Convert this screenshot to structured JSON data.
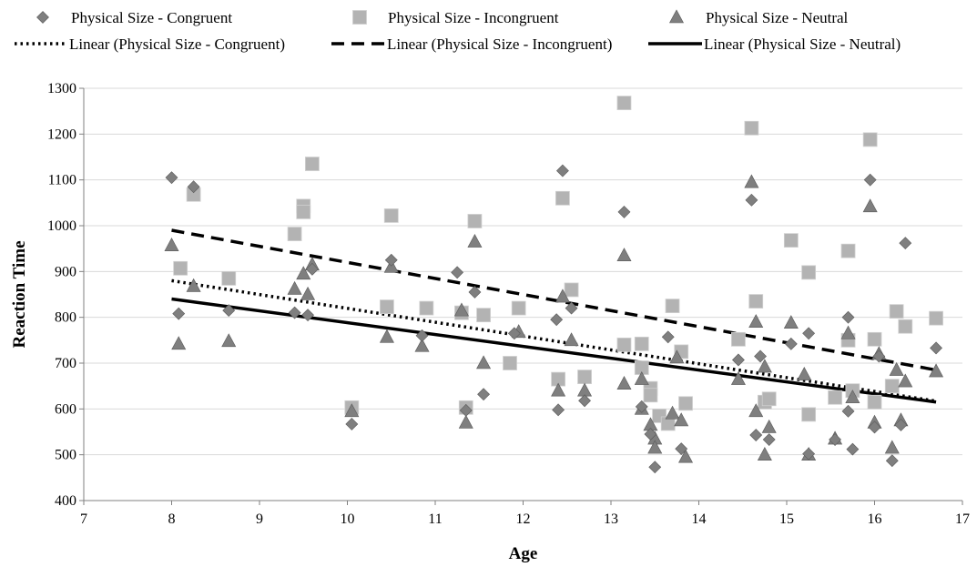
{
  "chart_data": {
    "type": "scatter",
    "title": "",
    "xlabel": "Age",
    "ylabel": "Reaction Time",
    "xlim": [
      7,
      17
    ],
    "ylim": [
      400,
      1300
    ],
    "xticks": [
      "7",
      "8",
      "9",
      "10",
      "11",
      "12",
      "13",
      "14",
      "15",
      "16",
      "17"
    ],
    "yticks": [
      "400",
      "500",
      "600",
      "700",
      "800",
      "900",
      "1000",
      "1100",
      "1200",
      "1300"
    ],
    "grid": "horizontal",
    "legend_position": "top",
    "series": [
      {
        "name": "Physical Size - Congruent",
        "marker": "diamond",
        "color": "#7f7f7f",
        "points": [
          [
            8.0,
            1105
          ],
          [
            8.08,
            808
          ],
          [
            8.25,
            1085
          ],
          [
            8.65,
            815
          ],
          [
            9.4,
            810
          ],
          [
            9.55,
            805
          ],
          [
            9.6,
            905
          ],
          [
            10.05,
            567
          ],
          [
            10.5,
            925
          ],
          [
            10.85,
            760
          ],
          [
            11.25,
            898
          ],
          [
            11.35,
            597
          ],
          [
            11.45,
            855
          ],
          [
            11.55,
            632
          ],
          [
            11.9,
            765
          ],
          [
            12.38,
            795
          ],
          [
            12.4,
            598
          ],
          [
            12.45,
            1120
          ],
          [
            12.55,
            820
          ],
          [
            12.7,
            618
          ],
          [
            13.15,
            1030
          ],
          [
            13.35,
            605
          ],
          [
            13.45,
            545
          ],
          [
            13.5,
            473
          ],
          [
            13.65,
            757
          ],
          [
            13.8,
            513
          ],
          [
            14.45,
            707
          ],
          [
            14.6,
            1056
          ],
          [
            14.65,
            543
          ],
          [
            14.7,
            715
          ],
          [
            14.8,
            533
          ],
          [
            15.05,
            742
          ],
          [
            15.25,
            765
          ],
          [
            15.25,
            502
          ],
          [
            15.55,
            533
          ],
          [
            15.7,
            800
          ],
          [
            15.7,
            595
          ],
          [
            15.75,
            512
          ],
          [
            15.95,
            1100
          ],
          [
            16.0,
            560
          ],
          [
            16.05,
            715
          ],
          [
            16.2,
            487
          ],
          [
            16.3,
            565
          ],
          [
            16.35,
            962
          ],
          [
            16.7,
            733
          ]
        ]
      },
      {
        "name": "Physical Size - Incongruent",
        "marker": "square",
        "color": "#b3b3b3",
        "points": [
          [
            8.1,
            907
          ],
          [
            8.25,
            1068
          ],
          [
            8.65,
            885
          ],
          [
            9.4,
            982
          ],
          [
            9.5,
            1043
          ],
          [
            9.5,
            1030
          ],
          [
            9.6,
            1135
          ],
          [
            10.05,
            603
          ],
          [
            10.45,
            823
          ],
          [
            10.5,
            1022
          ],
          [
            10.9,
            820
          ],
          [
            11.3,
            810
          ],
          [
            11.35,
            603
          ],
          [
            11.45,
            1010
          ],
          [
            11.55,
            805
          ],
          [
            11.85,
            700
          ],
          [
            11.95,
            820
          ],
          [
            12.4,
            665
          ],
          [
            12.45,
            1060
          ],
          [
            12.55,
            860
          ],
          [
            12.7,
            670
          ],
          [
            13.15,
            1268
          ],
          [
            13.15,
            740
          ],
          [
            13.35,
            742
          ],
          [
            13.35,
            690
          ],
          [
            13.45,
            645
          ],
          [
            13.45,
            630
          ],
          [
            13.55,
            585
          ],
          [
            13.65,
            568
          ],
          [
            13.7,
            825
          ],
          [
            13.8,
            725
          ],
          [
            13.85,
            612
          ],
          [
            14.45,
            752
          ],
          [
            14.6,
            1213
          ],
          [
            14.65,
            835
          ],
          [
            14.75,
            615
          ],
          [
            14.8,
            622
          ],
          [
            15.05,
            968
          ],
          [
            15.25,
            898
          ],
          [
            15.25,
            588
          ],
          [
            15.55,
            625
          ],
          [
            15.7,
            945
          ],
          [
            15.7,
            750
          ],
          [
            15.75,
            640
          ],
          [
            15.95,
            1188
          ],
          [
            16.0,
            615
          ],
          [
            16.0,
            752
          ],
          [
            16.2,
            650
          ],
          [
            16.25,
            813
          ],
          [
            16.35,
            780
          ],
          [
            16.7,
            798
          ]
        ]
      },
      {
        "name": "Physical Size - Neutral",
        "marker": "triangle",
        "color": "#7f7f7f",
        "points": [
          [
            8.0,
            957
          ],
          [
            8.08,
            742
          ],
          [
            8.25,
            868
          ],
          [
            8.65,
            748
          ],
          [
            9.4,
            862
          ],
          [
            9.5,
            895
          ],
          [
            9.55,
            850
          ],
          [
            9.6,
            915
          ],
          [
            10.05,
            595
          ],
          [
            10.45,
            757
          ],
          [
            10.5,
            910
          ],
          [
            10.85,
            737
          ],
          [
            11.3,
            815
          ],
          [
            11.35,
            570
          ],
          [
            11.45,
            965
          ],
          [
            11.55,
            700
          ],
          [
            11.95,
            768
          ],
          [
            12.4,
            640
          ],
          [
            12.45,
            845
          ],
          [
            12.55,
            750
          ],
          [
            12.7,
            640
          ],
          [
            13.15,
            935
          ],
          [
            13.15,
            655
          ],
          [
            13.35,
            665
          ],
          [
            13.35,
            600
          ],
          [
            13.45,
            565
          ],
          [
            13.5,
            535
          ],
          [
            13.5,
            515
          ],
          [
            13.7,
            590
          ],
          [
            13.75,
            712
          ],
          [
            13.8,
            575
          ],
          [
            13.85,
            495
          ],
          [
            14.45,
            665
          ],
          [
            14.6,
            1095
          ],
          [
            14.65,
            790
          ],
          [
            14.65,
            595
          ],
          [
            14.75,
            692
          ],
          [
            14.75,
            500
          ],
          [
            14.8,
            560
          ],
          [
            15.05,
            788
          ],
          [
            15.2,
            675
          ],
          [
            15.25,
            500
          ],
          [
            15.55,
            535
          ],
          [
            15.7,
            765
          ],
          [
            15.75,
            625
          ],
          [
            15.95,
            1042
          ],
          [
            16.0,
            570
          ],
          [
            16.05,
            720
          ],
          [
            16.2,
            515
          ],
          [
            16.25,
            685
          ],
          [
            16.3,
            575
          ],
          [
            16.35,
            660
          ],
          [
            16.7,
            682
          ]
        ]
      }
    ],
    "trendlines": [
      {
        "name": "Linear (Physical Size - Congruent)",
        "style": "dotted",
        "x": [
          8.0,
          16.7
        ],
        "y": [
          880,
          617
        ]
      },
      {
        "name": "Linear (Physical Size - Incongruent)",
        "style": "dashed",
        "x": [
          8.0,
          16.7
        ],
        "y": [
          990,
          685
        ]
      },
      {
        "name": "Linear (Physical Size - Neutral)",
        "style": "solid",
        "x": [
          8.0,
          16.7
        ],
        "y": [
          840,
          615
        ]
      }
    ]
  }
}
